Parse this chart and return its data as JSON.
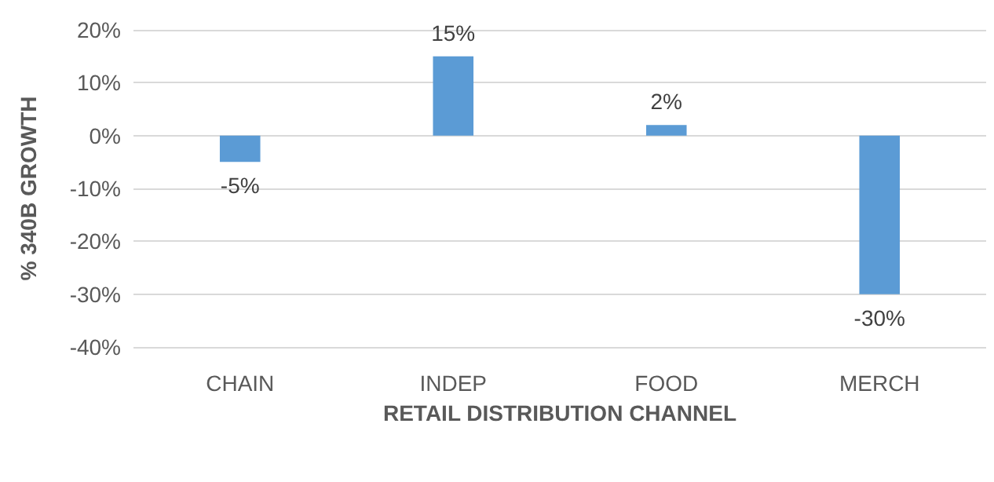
{
  "chart_data": {
    "type": "bar",
    "xlabel": "RETAIL DISTRIBUTION CHANNEL",
    "ylabel": "% 340B GROWTH",
    "categories": [
      "CHAIN",
      "INDEP",
      "FOOD",
      "MERCH"
    ],
    "values": [
      -5,
      15,
      2,
      -30
    ],
    "color": "#5b9bd5",
    "value_labels": [
      "-5%",
      "15%",
      "2%",
      "-30%"
    ],
    "ylim": [
      -40,
      20
    ],
    "yticks": [
      {
        "value": -40,
        "label": "-40%"
      },
      {
        "value": -30,
        "label": "-30%"
      },
      {
        "value": -20,
        "label": "-20%"
      },
      {
        "value": -10,
        "label": "-10%"
      },
      {
        "value": 0,
        "label": "0%"
      },
      {
        "value": 10,
        "label": "10%"
      },
      {
        "value": 20,
        "label": "20%"
      }
    ],
    "grid": "y"
  }
}
